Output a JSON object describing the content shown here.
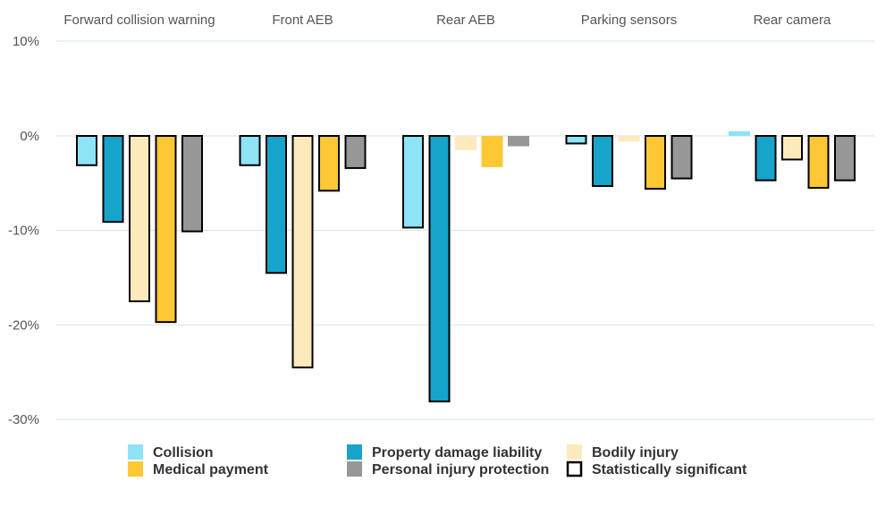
{
  "chart_data": {
    "type": "bar",
    "categories": [
      "Forward collision warning",
      "Front AEB",
      "Rear AEB",
      "Parking sensors",
      "Rear camera"
    ],
    "series": [
      {
        "name": "Collision",
        "color": "#8ee3f7",
        "values": [
          -3.1,
          -3.1,
          -9.7,
          -0.8,
          0.5
        ],
        "significant": [
          true,
          true,
          true,
          true,
          false
        ]
      },
      {
        "name": "Property damage liability",
        "color": "#17a4cb",
        "values": [
          -9.1,
          -14.5,
          -28.1,
          -5.3,
          -4.7
        ],
        "significant": [
          true,
          true,
          true,
          true,
          true
        ]
      },
      {
        "name": "Bodily injury",
        "color": "#fdeabc",
        "values": [
          -17.5,
          -24.5,
          -1.5,
          -0.6,
          -2.5
        ],
        "significant": [
          true,
          true,
          false,
          false,
          true
        ]
      },
      {
        "name": "Medical payment",
        "color": "#fdc833",
        "values": [
          -19.7,
          -5.8,
          -3.3,
          -5.6,
          -5.5
        ],
        "significant": [
          true,
          true,
          false,
          true,
          true
        ]
      },
      {
        "name": "Personal injury protection",
        "color": "#979797",
        "values": [
          -10.1,
          -3.4,
          -1.1,
          -4.5,
          -4.7
        ],
        "significant": [
          true,
          true,
          false,
          true,
          true
        ]
      }
    ],
    "ylim": [
      -30,
      10
    ],
    "yticks": [
      10,
      0,
      -10,
      -20,
      -30
    ],
    "ytick_labels": [
      "10%",
      "0%",
      "-10%",
      "-20%",
      "-30%"
    ],
    "grid": true,
    "legend": {
      "placement": "bottom",
      "items": [
        {
          "label": "Collision",
          "color": "#8ee3f7",
          "outlined": false
        },
        {
          "label": "Property damage liability",
          "color": "#17a4cb",
          "outlined": false
        },
        {
          "label": "Bodily injury",
          "color": "#fdeabc",
          "outlined": false
        },
        {
          "label": "Medical payment",
          "color": "#fdc833",
          "outlined": false
        },
        {
          "label": "Personal injury protection",
          "color": "#979797",
          "outlined": false
        },
        {
          "label": "Statistically significant",
          "color": "#ffffff",
          "outlined": true
        }
      ]
    }
  }
}
